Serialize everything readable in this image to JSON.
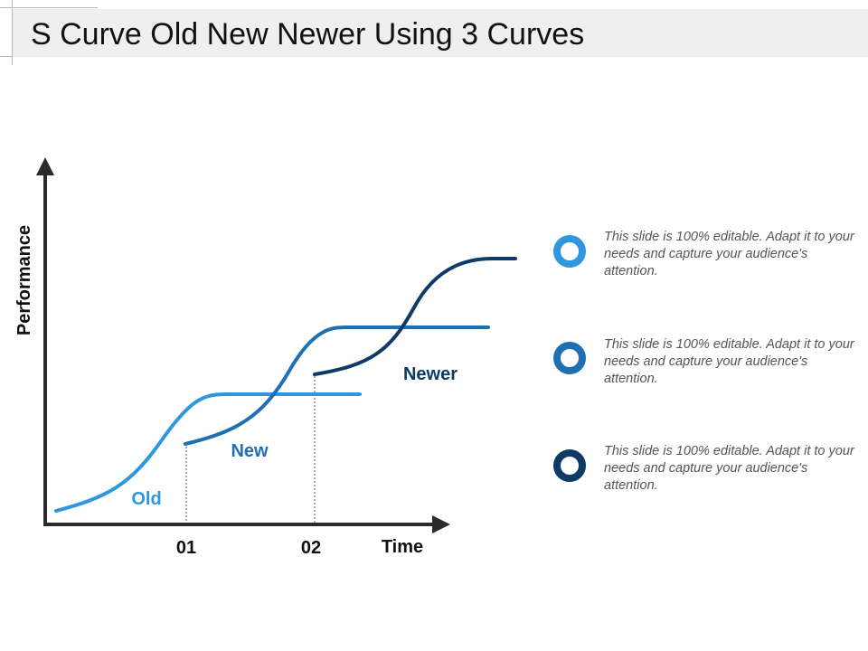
{
  "title": "S Curve Old New Newer Using 3 Curves",
  "axes": {
    "y_label": "Performance",
    "x_label": "Time",
    "ticks": [
      "01",
      "02"
    ]
  },
  "curves": [
    {
      "name": "Old",
      "color": "#2e97dd"
    },
    {
      "name": "New",
      "color": "#1f6fb3"
    },
    {
      "name": "Newer",
      "color": "#0d3a66"
    }
  ],
  "notes": [
    {
      "text": "This slide is 100% editable. Adapt it to your needs and capture your audience's attention.",
      "color": "#2e97dd"
    },
    {
      "text": "This slide is 100% editable. Adapt it to your needs and capture your audience's attention.",
      "color": "#1f6fb3"
    },
    {
      "text": "This slide is 100% editable. Adapt it to your needs and capture your audience's attention.",
      "color": "#0d3a66"
    }
  ],
  "colors": {
    "axis": "#2a2a2a",
    "title_bar": "#efefef"
  }
}
